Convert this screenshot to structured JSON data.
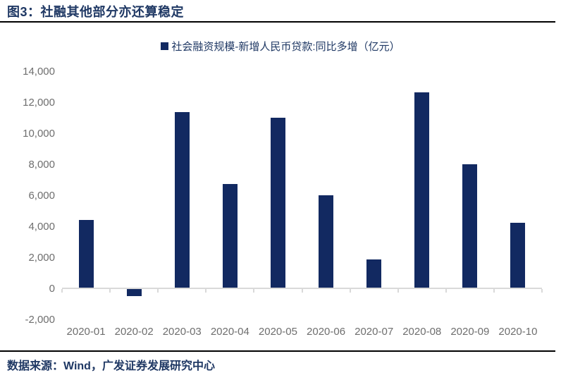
{
  "figure": {
    "title": "图3：社融其他部分亦还算稳定"
  },
  "legend": {
    "label": "社会融资规模-新增人民币贷款:同比多增（亿元）",
    "marker": "square",
    "color": "#122961"
  },
  "source": {
    "text": "数据来源：Wind，广发证券发展研究中心"
  },
  "colors": {
    "bar": "#122961",
    "navy_text": "#1f3864",
    "axis_line": "#d9d9d9",
    "tick_label": "#6e6e6e",
    "rule": "#000000"
  },
  "chart_data": {
    "type": "bar",
    "title": "图3：社融其他部分亦还算稳定",
    "series_name": "社会融资规模-新增人民币贷款:同比多增（亿元）",
    "unit": "亿元",
    "categories": [
      "2020-01",
      "2020-02",
      "2020-03",
      "2020-04",
      "2020-05",
      "2020-06",
      "2020-07",
      "2020-08",
      "2020-09",
      "2020-10"
    ],
    "values": [
      4400,
      -500,
      11350,
      6750,
      11000,
      6000,
      1850,
      12650,
      8000,
      4250
    ],
    "xlabel": "",
    "ylabel": "",
    "ylim": [
      -2000,
      14000
    ],
    "y_tick_step": 2000,
    "y_tick_labels": [
      "14,000",
      "12,000",
      "10,000",
      "8,000",
      "6,000",
      "4,000",
      "2,000",
      "0",
      "-2,000"
    ],
    "grid": false,
    "legend_position": "top-center",
    "bar_color": "#122961"
  }
}
